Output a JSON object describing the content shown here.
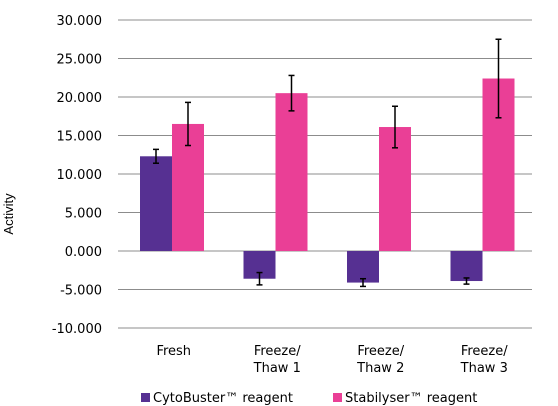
{
  "chart_data": {
    "type": "bar",
    "title": "",
    "xlabel": "",
    "ylabel": "Activity",
    "ylim": [
      -10000,
      30000
    ],
    "y_ticks": [
      30000,
      25000,
      20000,
      15000,
      10000,
      5000,
      0,
      -5000,
      -10000
    ],
    "y_tick_labels": [
      "30.000",
      "25.000",
      "20.000",
      "15.000",
      "10.000",
      "5.000",
      "0.000",
      "-5.000",
      "-10.000"
    ],
    "grid": "horizontal",
    "legend_position": "bottom",
    "categories": [
      [
        "Fresh"
      ],
      [
        "Freeze/",
        "Thaw 1"
      ],
      [
        "Freeze/",
        "Thaw 2"
      ],
      [
        "Freeze/",
        "Thaw 3"
      ]
    ],
    "series": [
      {
        "name": "CytoBuster™ reagent",
        "color": "#563092",
        "values": [
          12300,
          -3600,
          -4100,
          -3900
        ],
        "errors": [
          900,
          800,
          500,
          400
        ]
      },
      {
        "name": "Stabilyser™ reagent",
        "color": "#ea3f96",
        "values": [
          16500,
          20500,
          16100,
          22400
        ],
        "errors": [
          2800,
          2300,
          2700,
          5100
        ]
      }
    ]
  }
}
